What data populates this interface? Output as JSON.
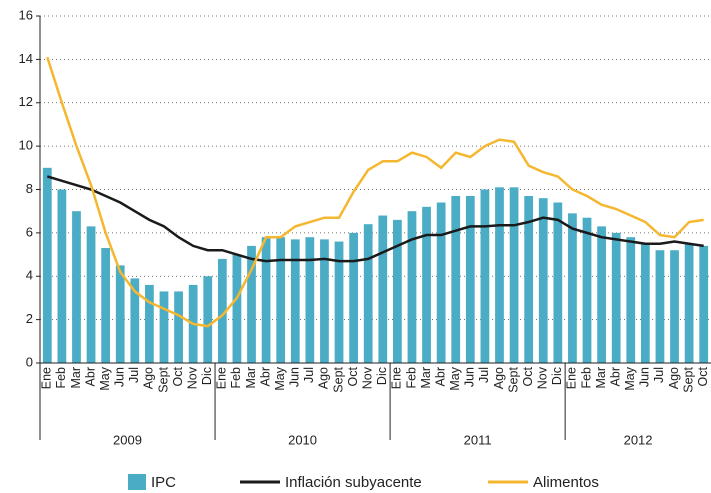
{
  "chart_data": {
    "type": "bar_line",
    "categories": [
      "Ene",
      "Feb",
      "Mar",
      "Abr",
      "May",
      "Jun",
      "Jul",
      "Ago",
      "Sept",
      "Oct",
      "Nov",
      "Dic",
      "Ene",
      "Feb",
      "Mar",
      "Abr",
      "May",
      "Jun",
      "Jul",
      "Ago",
      "Sept",
      "Oct",
      "Nov",
      "Dic",
      "Ene",
      "Feb",
      "Mar",
      "Abr",
      "May",
      "Jun",
      "Jul",
      "Ago",
      "Sept",
      "Oct",
      "Nov",
      "Dic",
      "Ene",
      "Feb",
      "Mar",
      "Abr",
      "May",
      "Jun",
      "Jul",
      "Ago",
      "Sept",
      "Oct"
    ],
    "groups": [
      {
        "label": "2009",
        "count": 12
      },
      {
        "label": "2010",
        "count": 12
      },
      {
        "label": "2011",
        "count": 12
      },
      {
        "label": "2012",
        "count": 10
      }
    ],
    "series": [
      {
        "name": "IPC",
        "kind": "bar",
        "color": "#4bacc6",
        "values": [
          9.0,
          8.0,
          7.0,
          6.3,
          5.3,
          4.5,
          3.9,
          3.6,
          3.3,
          3.3,
          3.6,
          4.0,
          4.8,
          5.0,
          5.4,
          5.8,
          5.8,
          5.7,
          5.8,
          5.7,
          5.6,
          6.0,
          6.4,
          6.8,
          6.6,
          7.0,
          7.2,
          7.4,
          7.7,
          7.7,
          8.0,
          8.1,
          8.1,
          7.7,
          7.6,
          7.4,
          6.9,
          6.7,
          6.3,
          6.0,
          5.8,
          5.5,
          5.2,
          5.2,
          5.5,
          5.4
        ]
      },
      {
        "name": "Inflación subyacente",
        "kind": "line",
        "color": "#1a1a1a",
        "values": [
          8.6,
          8.4,
          8.2,
          8.0,
          7.7,
          7.4,
          7.0,
          6.6,
          6.3,
          5.8,
          5.4,
          5.2,
          5.2,
          5.0,
          4.8,
          4.7,
          4.75,
          4.75,
          4.75,
          4.8,
          4.7,
          4.7,
          4.8,
          5.1,
          5.4,
          5.7,
          5.9,
          5.9,
          6.1,
          6.3,
          6.3,
          6.35,
          6.35,
          6.5,
          6.7,
          6.6,
          6.2,
          6.0,
          5.8,
          5.7,
          5.6,
          5.5,
          5.5,
          5.6,
          5.5,
          5.4
        ]
      },
      {
        "name": "Alimentos",
        "kind": "line",
        "color": "#f5b730",
        "values": [
          14.1,
          12.0,
          10.0,
          8.2,
          6.0,
          4.2,
          3.3,
          2.8,
          2.5,
          2.2,
          1.8,
          1.7,
          2.2,
          3.0,
          4.3,
          5.8,
          5.8,
          6.3,
          6.5,
          6.7,
          6.7,
          7.9,
          8.9,
          9.3,
          9.3,
          9.7,
          9.5,
          9.0,
          9.7,
          9.5,
          10.0,
          10.3,
          10.2,
          9.1,
          8.8,
          8.6,
          8.0,
          7.7,
          7.3,
          7.1,
          6.8,
          6.5,
          5.9,
          5.8,
          6.5,
          6.6
        ]
      }
    ],
    "ylim": [
      0,
      16
    ],
    "yticks": [
      0,
      2,
      4,
      6,
      8,
      10,
      12,
      14,
      16
    ],
    "grid": true
  }
}
